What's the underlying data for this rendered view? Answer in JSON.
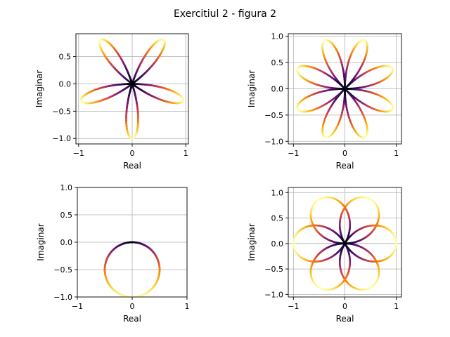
{
  "figure": {
    "title": "Exercitiul 2 - figura 2"
  },
  "colors": {
    "colormap": "inferno",
    "grid": "#b0b0b0",
    "axes": "#000000",
    "background": "#ffffff"
  },
  "chart_data": [
    {
      "type": "line",
      "curve": "z(t) = sin(5t)·e^(−2πi·t), colored by |z|",
      "xlabel": "Real",
      "ylabel": "Imaginar",
      "xlim": [
        -1.05,
        1.05
      ],
      "ylim": [
        -1.1,
        0.92
      ],
      "xticks": [
        -1,
        0,
        1
      ],
      "yticks": [
        -1.0,
        -0.5,
        0.0,
        0.5
      ],
      "grid": true,
      "params": {
        "k": 5,
        "phase_turns": 0.0
      }
    },
    {
      "type": "line",
      "curve": "z(t) = sin(4t)·e^(−2πi·t), colored by |z|",
      "xlabel": "Real",
      "ylabel": "Imaginar",
      "xlim": [
        -1.1,
        1.1
      ],
      "ylim": [
        -1.05,
        1.05
      ],
      "xticks": [
        -1,
        0,
        1
      ],
      "yticks": [
        -1.0,
        -0.5,
        0.0,
        0.5,
        1.0
      ],
      "grid": true,
      "params": {
        "k": 4,
        "phase_turns": 0.0
      }
    },
    {
      "type": "line",
      "curve": "z(t) = sin(t)·e^(−2πi·t), colored by |z|",
      "xlabel": "Real",
      "ylabel": "Imaginar",
      "xlim": [
        -1,
        1
      ],
      "ylim": [
        -1,
        1
      ],
      "xticks": [
        -1,
        0,
        1
      ],
      "yticks": [
        -1.0,
        -0.5,
        0.0,
        0.5,
        1.0
      ],
      "grid": true,
      "params": {
        "k": 1,
        "phase_turns": 0.0
      }
    },
    {
      "type": "line",
      "curve": "z(t) = sin(1.5t)·e^(−2πi·t) over two turns, colored by |z|",
      "xlabel": "Real",
      "ylabel": "Imaginar",
      "xlim": [
        -1.1,
        1.1
      ],
      "ylim": [
        -1.05,
        1.1
      ],
      "xticks": [
        -1,
        0,
        1
      ],
      "yticks": [
        -1.0,
        -0.5,
        0.0,
        0.5,
        1.0
      ],
      "grid": true,
      "params": {
        "k": 1.5,
        "phase_turns": 0.0,
        "turns": 2
      }
    }
  ]
}
